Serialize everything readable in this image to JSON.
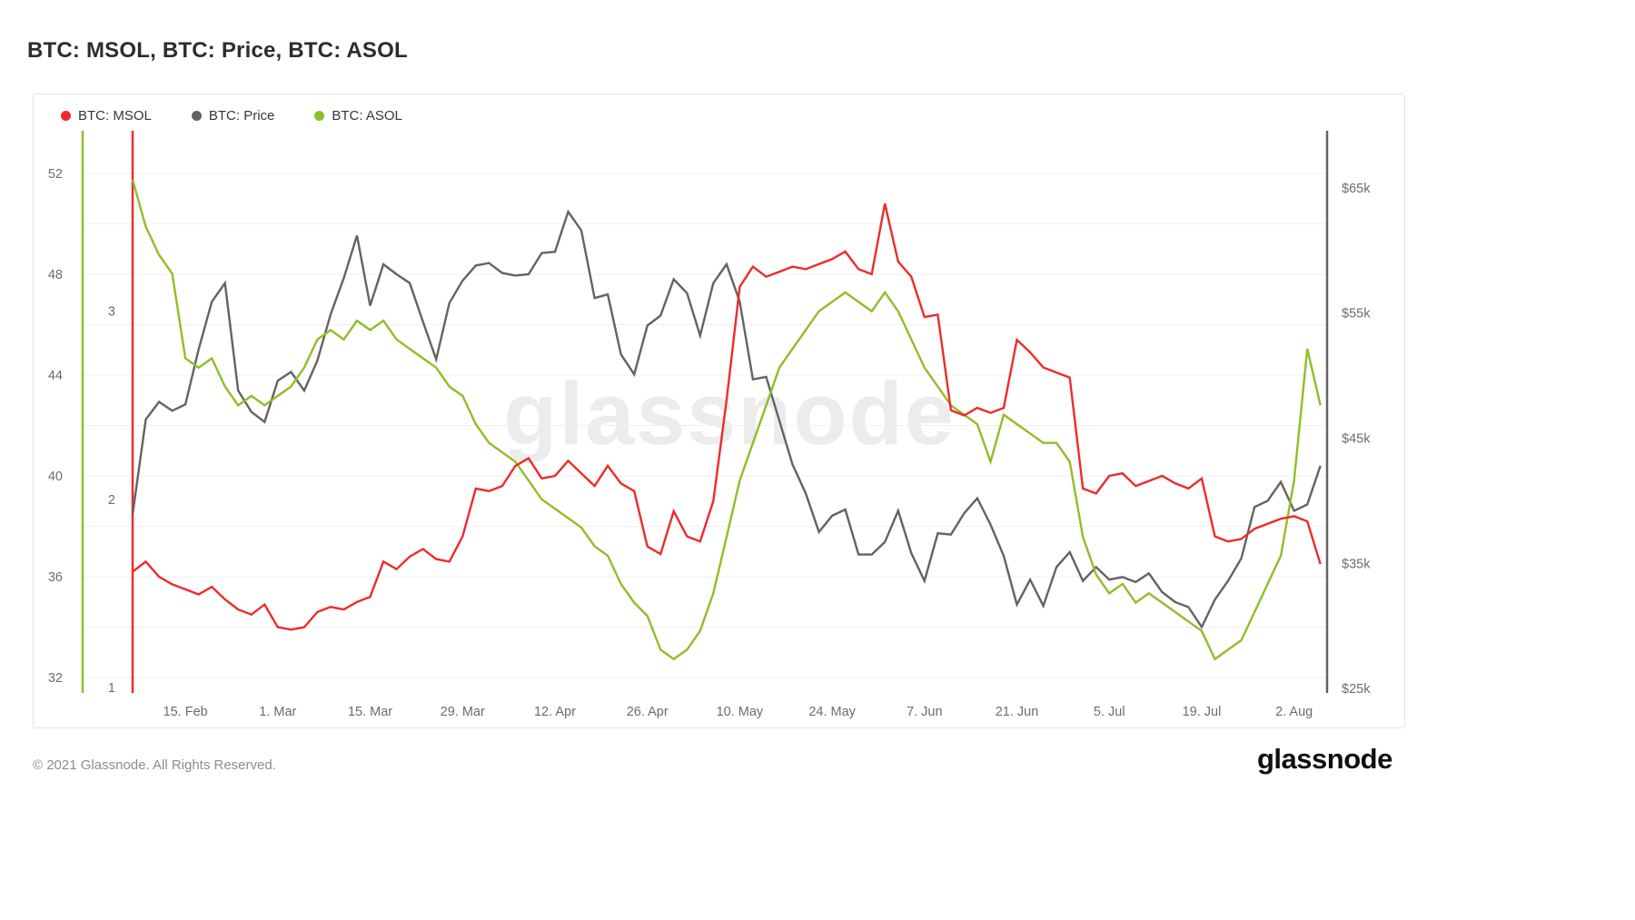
{
  "page": {
    "title": "BTC: MSOL, BTC: Price, BTC: ASOL",
    "watermark": "glassnode",
    "footer_copyright": "© 2021 Glassnode. All Rights Reserved.",
    "brand_logo": "glassnode"
  },
  "legend": [
    {
      "label": "BTC: MSOL",
      "color": "#ee2b2b"
    },
    {
      "label": "BTC: Price",
      "color": "#636363"
    },
    {
      "label": "BTC: ASOL",
      "color": "#8fbe28"
    }
  ],
  "chart_data": {
    "type": "line",
    "title": "BTC: MSOL, BTC: Price, BTC: ASOL",
    "grid": true,
    "x_unit": "days since first point (Feb 2021 - Aug 2021)",
    "x_ticks": [
      {
        "label": "15. Feb",
        "day": 8
      },
      {
        "label": "1. Mar",
        "day": 22
      },
      {
        "label": "15. Mar",
        "day": 36
      },
      {
        "label": "29. Mar",
        "day": 50
      },
      {
        "label": "12. Apr",
        "day": 64
      },
      {
        "label": "26. Apr",
        "day": 78
      },
      {
        "label": "10. May",
        "day": 92
      },
      {
        "label": "24. May",
        "day": 106
      },
      {
        "label": "7. Jun",
        "day": 120
      },
      {
        "label": "21. Jun",
        "day": 134
      },
      {
        "label": "5. Jul",
        "day": 148
      },
      {
        "label": "19. Jul",
        "day": 162
      },
      {
        "label": "2. Aug",
        "day": 176
      }
    ],
    "axes": {
      "msol": {
        "label": "BTC: MSOL",
        "side": "left-outer",
        "color": "#ee2b2b",
        "tick_values": [
          52,
          48,
          44,
          40,
          36,
          32
        ],
        "grid_values": [
          52,
          50,
          48,
          46,
          44,
          42,
          40,
          38,
          36,
          34,
          32
        ],
        "range": [
          31.39,
          53.69
        ]
      },
      "asol": {
        "label": "BTC: ASOL",
        "side": "left-inner",
        "color": "#8fbe28",
        "tick_values": [
          3,
          2,
          1
        ],
        "range": [
          0.97,
          3.96
        ]
      },
      "price": {
        "label": "BTC: Price",
        "side": "right",
        "color": "#636363",
        "tick_values": [
          65,
          55,
          45,
          35,
          25
        ],
        "tick_labels": [
          "$65k",
          "$55k",
          "$45k",
          "$35k",
          "$25k"
        ],
        "range": [
          24.64,
          69.57
        ]
      }
    },
    "x_days": [
      0,
      2,
      4,
      6,
      8,
      10,
      12,
      14,
      16,
      18,
      20,
      22,
      24,
      26,
      28,
      30,
      32,
      34,
      36,
      38,
      40,
      42,
      44,
      46,
      48,
      50,
      52,
      54,
      56,
      58,
      60,
      62,
      64,
      66,
      68,
      70,
      72,
      74,
      76,
      78,
      80,
      82,
      84,
      86,
      88,
      90,
      92,
      94,
      96,
      98,
      100,
      102,
      104,
      106,
      108,
      110,
      112,
      114,
      116,
      118,
      120,
      122,
      124,
      126,
      128,
      130,
      132,
      134,
      136,
      138,
      140,
      142,
      144,
      146,
      148,
      150,
      152,
      154,
      156,
      158,
      160,
      162,
      164,
      166,
      168,
      170,
      172,
      174,
      176,
      178,
      180
    ],
    "series": [
      {
        "id": "msol",
        "name": "BTC: MSOL",
        "axis": "msol",
        "color": "#ee2b2b",
        "z": 3,
        "values": [
          36.2,
          36.6,
          36.0,
          35.7,
          35.5,
          35.3,
          35.6,
          35.1,
          34.7,
          34.5,
          34.9,
          34.0,
          33.9,
          34.0,
          34.6,
          34.8,
          34.7,
          35.0,
          35.2,
          36.6,
          36.3,
          36.8,
          37.1,
          36.7,
          36.6,
          37.6,
          39.5,
          39.4,
          39.6,
          40.4,
          40.7,
          39.9,
          40.0,
          40.6,
          40.1,
          39.6,
          40.4,
          39.7,
          39.4,
          37.2,
          36.9,
          38.6,
          37.6,
          37.4,
          39.0,
          43.0,
          47.5,
          48.3,
          47.9,
          48.1,
          48.3,
          48.2,
          48.4,
          48.6,
          48.9,
          48.2,
          48.0,
          50.8,
          48.5,
          47.9,
          46.3,
          46.4,
          42.6,
          42.4,
          42.7,
          42.5,
          42.7,
          45.4,
          44.9,
          44.3,
          44.1,
          43.9,
          39.5,
          39.3,
          40.0,
          40.1,
          39.6,
          39.8,
          40.0,
          39.7,
          39.5,
          39.9,
          37.6,
          37.4,
          37.5,
          37.9,
          38.1,
          38.3,
          38.4,
          38.2,
          36.5
        ]
      },
      {
        "id": "price",
        "name": "BTC: Price",
        "axis": "price",
        "color": "#636363",
        "z": 1,
        "values": [
          38.9,
          46.5,
          47.9,
          47.2,
          47.7,
          52.1,
          55.9,
          57.4,
          48.8,
          47.1,
          46.3,
          49.6,
          50.3,
          48.8,
          51.2,
          54.9,
          57.8,
          61.2,
          55.6,
          58.9,
          58.1,
          57.4,
          54.3,
          51.3,
          55.8,
          57.6,
          58.8,
          59.0,
          58.2,
          58.0,
          58.1,
          59.8,
          59.9,
          63.1,
          61.6,
          56.2,
          56.5,
          51.7,
          50.1,
          54.0,
          54.8,
          57.7,
          56.6,
          53.2,
          57.4,
          58.9,
          55.9,
          49.7,
          49.9,
          46.4,
          42.9,
          40.6,
          37.5,
          38.8,
          39.3,
          35.7,
          35.7,
          36.7,
          39.2,
          35.8,
          33.6,
          37.4,
          37.3,
          39.0,
          40.2,
          38.1,
          35.6,
          31.7,
          33.7,
          31.6,
          34.7,
          35.9,
          33.6,
          34.7,
          33.7,
          33.9,
          33.5,
          34.2,
          32.7,
          31.9,
          31.5,
          29.9,
          32.1,
          33.6,
          35.4,
          39.5,
          40.0,
          41.5,
          39.2,
          39.7,
          42.8
        ]
      },
      {
        "id": "asol",
        "name": "BTC: ASOL",
        "axis": "asol",
        "color": "#8fbe28",
        "z": 2,
        "values": [
          3.7,
          3.45,
          3.3,
          3.2,
          2.75,
          2.7,
          2.75,
          2.6,
          2.5,
          2.55,
          2.5,
          2.55,
          2.6,
          2.7,
          2.85,
          2.9,
          2.85,
          2.95,
          2.9,
          2.95,
          2.85,
          2.8,
          2.75,
          2.7,
          2.6,
          2.55,
          2.4,
          2.3,
          2.25,
          2.2,
          2.1,
          2.0,
          1.95,
          1.9,
          1.85,
          1.75,
          1.7,
          1.55,
          1.45,
          1.38,
          1.2,
          1.15,
          1.2,
          1.3,
          1.5,
          1.8,
          2.1,
          2.3,
          2.5,
          2.7,
          2.8,
          2.9,
          3.0,
          3.05,
          3.1,
          3.05,
          3.0,
          3.1,
          3.0,
          2.85,
          2.7,
          2.6,
          2.5,
          2.45,
          2.4,
          2.2,
          2.45,
          2.4,
          2.35,
          2.3,
          2.3,
          2.2,
          1.8,
          1.6,
          1.5,
          1.55,
          1.45,
          1.5,
          1.45,
          1.4,
          1.35,
          1.3,
          1.15,
          1.2,
          1.25,
          1.4,
          1.55,
          1.7,
          2.1,
          2.8,
          2.5
        ]
      }
    ]
  }
}
